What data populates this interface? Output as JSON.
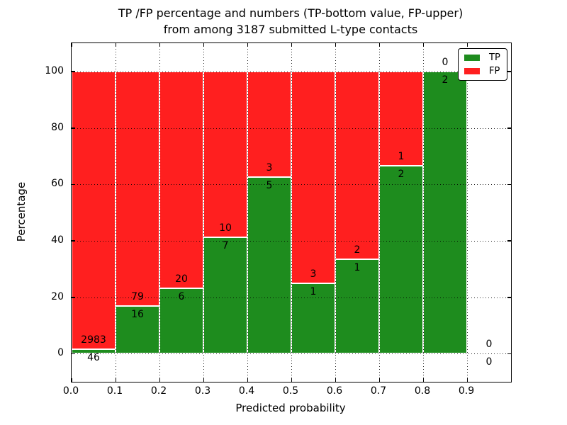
{
  "figure": {
    "title_line1": "TP /FP percentage and numbers (TP-bottom value, FP-upper)",
    "title_line2": "from among 3187 submitted L-type contacts"
  },
  "chart_data": {
    "type": "bar",
    "subtype": "stacked-percentage-histogram",
    "title": "TP /FP percentage and numbers (TP-bottom value, FP-upper) from among 3187 submitted L-type contacts",
    "xlabel": "Predicted probability",
    "ylabel": "Percentage",
    "xlim": [
      0.0,
      1.0
    ],
    "ylim": [
      -10,
      110
    ],
    "bin_width": 0.1,
    "grid": "dotted black, on",
    "xticks": [
      "0.0",
      "0.1",
      "0.2",
      "0.3",
      "0.4",
      "0.5",
      "0.6",
      "0.7",
      "0.8",
      "0.9"
    ],
    "yticks": [
      "0",
      "20",
      "40",
      "60",
      "80",
      "100"
    ],
    "ytick_values": [
      0,
      20,
      40,
      60,
      80,
      100
    ],
    "legend": {
      "position": "upper right",
      "entries": [
        {
          "label": "TP",
          "color": "#1E8C1E"
        },
        {
          "label": "FP",
          "color": "#FF1F1F"
        }
      ]
    },
    "categories": [
      "0.0-0.1",
      "0.1-0.2",
      "0.2-0.3",
      "0.3-0.4",
      "0.4-0.5",
      "0.5-0.6",
      "0.6-0.7",
      "0.7-0.8",
      "0.8-0.9",
      "0.9-1.0"
    ],
    "series": [
      {
        "name": "TP",
        "color": "#1E8C1E",
        "counts": [
          46,
          16,
          6,
          7,
          5,
          1,
          1,
          2,
          2,
          0
        ]
      },
      {
        "name": "FP",
        "color": "#FF1F1F",
        "counts": [
          2983,
          79,
          20,
          10,
          3,
          3,
          2,
          1,
          0,
          0
        ]
      }
    ],
    "tp_percent_of_bin": [
      1.52,
      16.84,
      23.08,
      41.18,
      62.5,
      25.0,
      33.33,
      66.67,
      100.0,
      0.0
    ],
    "total_contacts": 3187
  }
}
